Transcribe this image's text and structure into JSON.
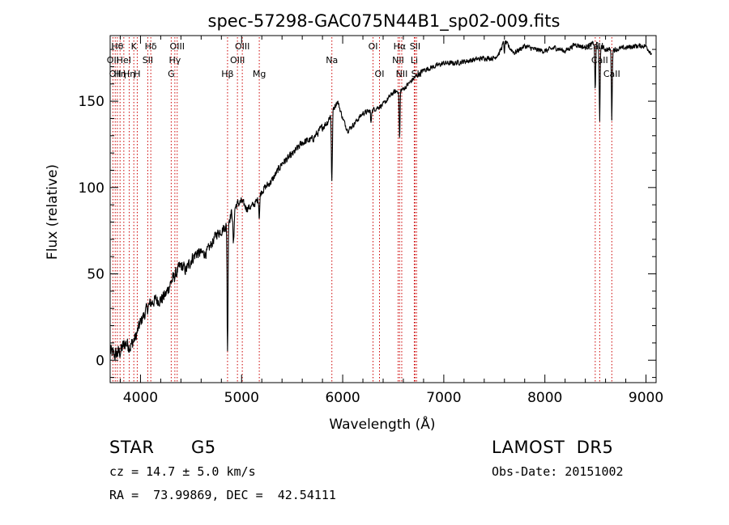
{
  "chart_data": {
    "type": "line",
    "title": "spec-57298-GAC075N44B1_sp02-009.fits",
    "xlabel": "Wavelength (Å)",
    "ylabel": "Flux (relative)",
    "xlim": [
      3700,
      9100
    ],
    "ylim": [
      -13,
      188
    ],
    "xticks": [
      4000,
      5000,
      6000,
      7000,
      8000,
      9000
    ],
    "yticks": [
      0,
      50,
      100,
      150
    ],
    "grid": false,
    "legend": "none",
    "line_color": "#000000",
    "marker_color": "#cc0000",
    "series": [
      {
        "anchors_x": [
          3700,
          3750,
          3800,
          3850,
          3900,
          3950,
          4000,
          4050,
          4100,
          4150,
          4200,
          4250,
          4300,
          4350,
          4400,
          4450,
          4500,
          4550,
          4600,
          4650,
          4700,
          4750,
          4800,
          4850,
          4900,
          4950,
          5000,
          5050,
          5100,
          5150,
          5200,
          5300,
          5400,
          5500,
          5600,
          5700,
          5800,
          5850,
          5900,
          5950,
          6000,
          6050,
          6100,
          6200,
          6300,
          6400,
          6500,
          6600,
          6700,
          6800,
          6900,
          7000,
          7100,
          7200,
          7300,
          7400,
          7500,
          7550,
          7600,
          7650,
          7700,
          7800,
          7900,
          8000,
          8100,
          8200,
          8300,
          8400,
          8500,
          8600,
          8700,
          8800,
          8900,
          9000,
          9050
        ],
        "anchors_y": [
          5,
          3,
          5,
          10,
          8,
          13,
          22,
          28,
          33,
          35,
          35,
          38,
          45,
          50,
          55,
          52,
          58,
          62,
          62,
          62,
          67,
          73,
          75,
          78,
          85,
          90,
          92,
          88,
          89,
          92,
          98,
          104,
          114,
          119,
          126,
          128,
          135,
          138,
          145,
          150,
          140,
          133,
          136,
          143,
          145,
          148,
          155,
          157,
          163,
          168,
          170,
          172,
          172,
          173,
          174,
          175,
          175,
          178,
          185,
          181,
          178,
          182,
          180,
          179,
          181,
          179,
          183,
          181,
          184,
          180,
          180,
          181,
          182,
          182,
          178
        ],
        "noise_amplitude": [
          6,
          6,
          6,
          6,
          6,
          5,
          5,
          5,
          5,
          5,
          5,
          5,
          5,
          5,
          5,
          5,
          5,
          5,
          4,
          4,
          4,
          4,
          4,
          4,
          4,
          4,
          3,
          3,
          3,
          3,
          3,
          3,
          3,
          3,
          3,
          3,
          3,
          3,
          3,
          2,
          2,
          2,
          2,
          2,
          2,
          2,
          2,
          2,
          2,
          2,
          2,
          2,
          2,
          2,
          2,
          2,
          2,
          2,
          2,
          2,
          2,
          2,
          2,
          2,
          2,
          2,
          2,
          2,
          2,
          2,
          2,
          2,
          2,
          2,
          2
        ],
        "absorption_lines": [
          {
            "x": 4861,
            "depth": 75,
            "width": 6
          },
          {
            "x": 4920,
            "depth": 20,
            "width": 8
          },
          {
            "x": 5175,
            "depth": 12,
            "width": 6
          },
          {
            "x": 5893,
            "depth": 40,
            "width": 7
          },
          {
            "x": 6280,
            "depth": 8,
            "width": 5
          },
          {
            "x": 6563,
            "depth": 28,
            "width": 6
          },
          {
            "x": 7600,
            "depth": 8,
            "width": 4
          },
          {
            "x": 8498,
            "depth": 28,
            "width": 6
          },
          {
            "x": 8542,
            "depth": 45,
            "width": 6
          },
          {
            "x": 8662,
            "depth": 40,
            "width": 6
          }
        ]
      }
    ],
    "line_markers": [
      {
        "x": 3727,
        "label": "OII",
        "row": 1
      },
      {
        "x": 3750,
        "label": "OII",
        "row": 2
      },
      {
        "x": 3771,
        "label": "Hθ",
        "row": 0
      },
      {
        "x": 3798,
        "label": "Hη",
        "row": 2
      },
      {
        "x": 3835,
        "label": "HeI",
        "row": 1
      },
      {
        "x": 3889,
        "label": "Hη",
        "row": 2
      },
      {
        "x": 3934,
        "label": "K",
        "row": 0
      },
      {
        "x": 3968,
        "label": "H",
        "row": 2
      },
      {
        "x": 4072,
        "label": "SII",
        "row": 1
      },
      {
        "x": 4102,
        "label": "Hδ",
        "row": 0
      },
      {
        "x": 4304,
        "label": "G",
        "row": 2
      },
      {
        "x": 4340,
        "label": "Hγ",
        "row": 1
      },
      {
        "x": 4363,
        "label": "OIII",
        "row": 0
      },
      {
        "x": 4861,
        "label": "Hβ",
        "row": 2
      },
      {
        "x": 4959,
        "label": "OIII",
        "row": 1
      },
      {
        "x": 5007,
        "label": "OIII",
        "row": 0
      },
      {
        "x": 5175,
        "label": "Mg",
        "row": 2
      },
      {
        "x": 5893,
        "label": "Na",
        "row": 1
      },
      {
        "x": 6300,
        "label": "OI",
        "row": 0
      },
      {
        "x": 6364,
        "label": "OI",
        "row": 2
      },
      {
        "x": 6548,
        "label": "NII",
        "row": 1
      },
      {
        "x": 6563,
        "label": "Hα",
        "row": 0
      },
      {
        "x": 6584,
        "label": "NII",
        "row": 2
      },
      {
        "x": 6708,
        "label": "Li",
        "row": 1
      },
      {
        "x": 6716,
        "label": "SII",
        "row": 0
      },
      {
        "x": 6731,
        "label": "SII",
        "row": 2
      },
      {
        "x": 8498,
        "label": "CaII",
        "row": 0
      },
      {
        "x": 8542,
        "label": "CaII",
        "row": 1
      },
      {
        "x": 8662,
        "label": "CaII",
        "row": 2
      }
    ]
  },
  "info": {
    "class": "STAR",
    "subclass": "G5",
    "survey": "LAMOST  DR5",
    "cz": "cz = 14.7 ± 5.0 km/s",
    "obs_date": "Obs-Date: 20151002",
    "coords": "RA =  73.99869, DEC =  42.54111"
  }
}
